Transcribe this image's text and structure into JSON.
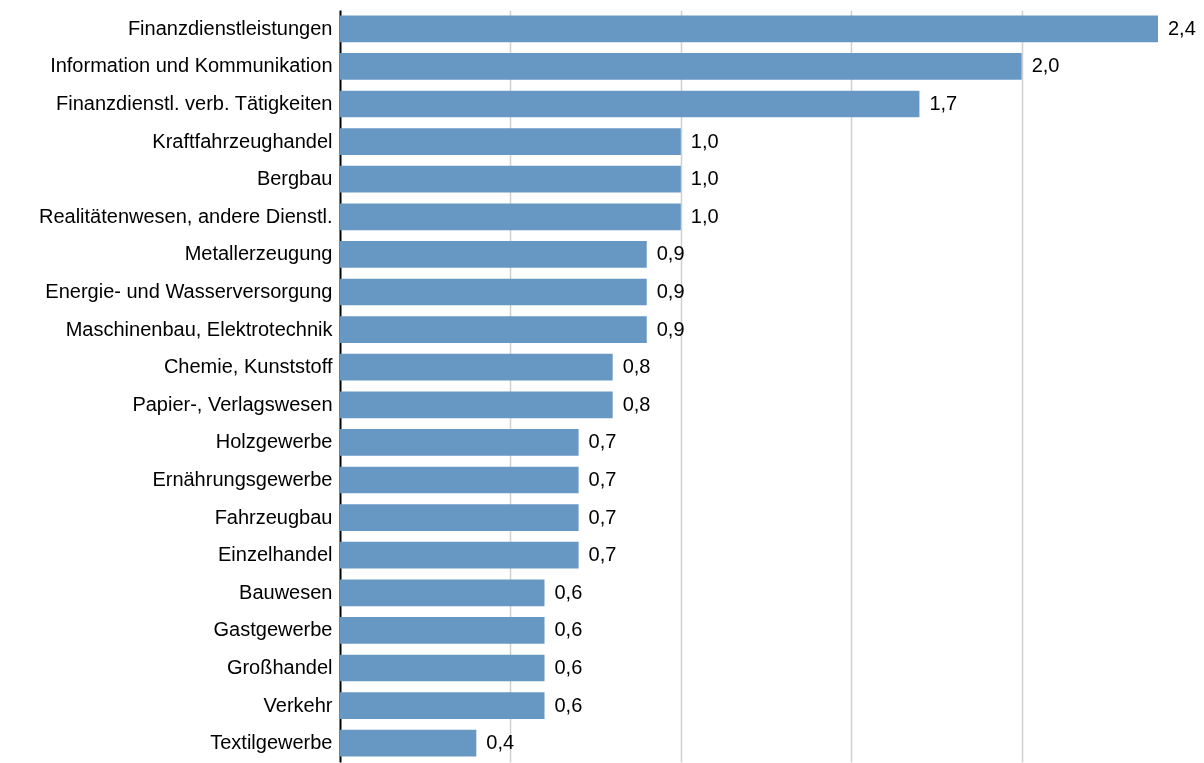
{
  "chart_data": {
    "type": "bar",
    "orientation": "horizontal",
    "categories": [
      "Finanzdienstleistungen",
      "Information und Kommunikation",
      "Finanzdienstl. verb. Tätigkeiten",
      "Kraftfahrzeughandel",
      "Bergbau",
      "Realitätenwesen, andere Dienstl.",
      "Metallerzeugung",
      "Energie- und Wasserversorgung",
      "Maschinenbau, Elektrotechnik",
      "Chemie, Kunststoff",
      "Papier-, Verlagswesen",
      "Holzgewerbe",
      "Ernährungsgewerbe",
      "Fahrzeugbau",
      "Einzelhandel",
      "Bauwesen",
      "Gastgewerbe",
      "Großhandel",
      "Verkehr",
      "Textilgewerbe"
    ],
    "values": [
      2.4,
      2.0,
      1.7,
      1.0,
      1.0,
      1.0,
      0.9,
      0.9,
      0.9,
      0.8,
      0.8,
      0.7,
      0.7,
      0.7,
      0.7,
      0.6,
      0.6,
      0.6,
      0.6,
      0.4
    ],
    "value_labels": [
      "2,4",
      "2,0",
      "1,7",
      "1,0",
      "1,0",
      "1,0",
      "0,9",
      "0,9",
      "0,9",
      "0,8",
      "0,8",
      "0,7",
      "0,7",
      "0,7",
      "0,7",
      "0,6",
      "0,6",
      "0,6",
      "0,6",
      "0,4"
    ],
    "color": "#6798c4",
    "xticks": [
      {
        "value": 0.5,
        "label": null
      },
      {
        "value": 1.0,
        "label": null
      },
      {
        "value": 1.5,
        "label": null
      },
      {
        "value": 2.0,
        "label": null
      }
    ],
    "grid": "x",
    "tick_labels": "y"
  }
}
